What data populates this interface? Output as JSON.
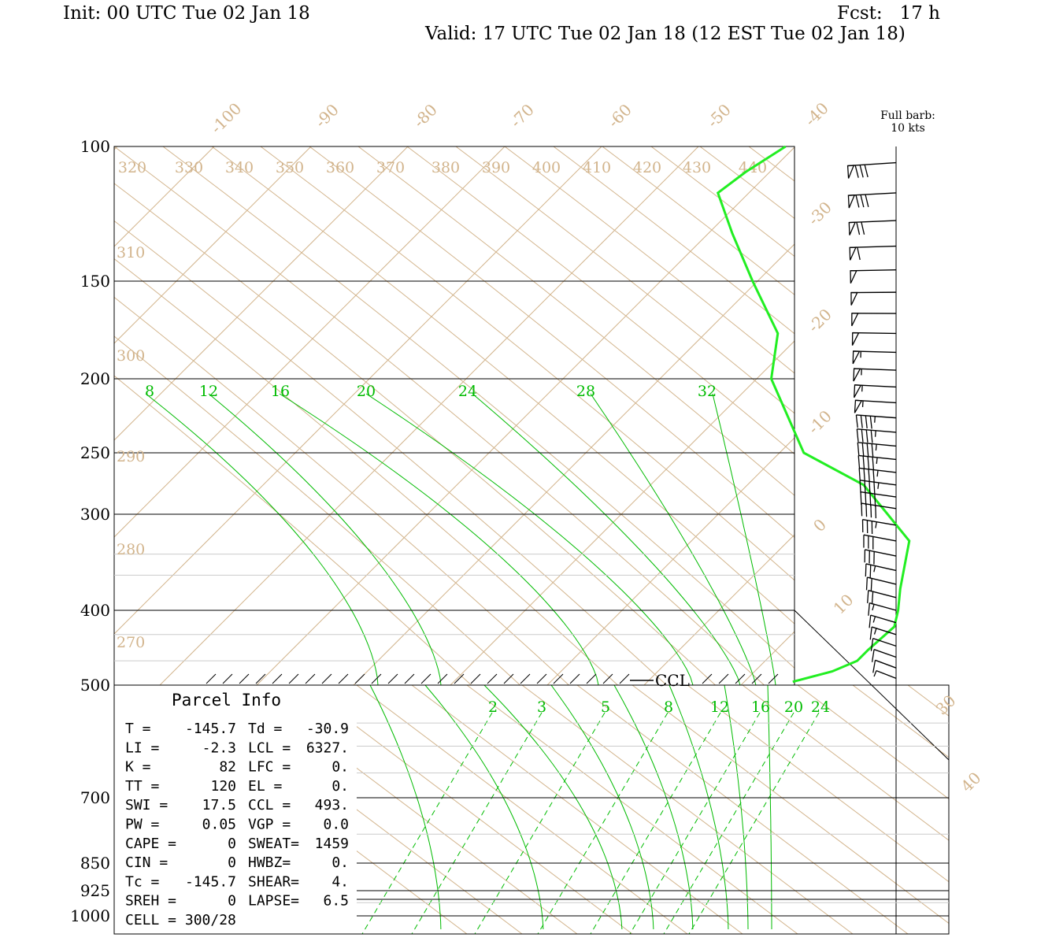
{
  "header": {
    "init": "Init: 00 UTC Tue 02 Jan 18",
    "fcst": "Fcst:   17 h",
    "valid": "Valid: 17 UTC Tue 02 Jan 18 (12 EST Tue 02 Jan 18)"
  },
  "barb_legend": {
    "line1": "Full barb:",
    "line2": "10 kts"
  },
  "colors": {
    "theta": "#d2b48c",
    "mixing": "#00bb00",
    "sounding": "#22ee22",
    "grid": "#000000",
    "ink": "#000000"
  },
  "chart_data": {
    "type": "skew-t",
    "pressure_levels": [
      {
        "p": 100,
        "label": "100"
      },
      {
        "p": 150,
        "label": "150"
      },
      {
        "p": 200,
        "label": "200"
      },
      {
        "p": 250,
        "label": "250"
      },
      {
        "p": 300,
        "label": "300"
      },
      {
        "p": 400,
        "label": "400"
      },
      {
        "p": 500,
        "label": "500"
      },
      {
        "p": 700,
        "label": "700"
      },
      {
        "p": 850,
        "label": "850"
      },
      {
        "p": 925,
        "label": "925"
      },
      {
        "p": 1000,
        "label": "1000"
      }
    ],
    "temperature_labels": [
      {
        "t": -100,
        "label": "-100"
      },
      {
        "t": -90,
        "label": "-90"
      },
      {
        "t": -80,
        "label": "-80"
      },
      {
        "t": -70,
        "label": "-70"
      },
      {
        "t": -60,
        "label": "-60"
      },
      {
        "t": -50,
        "label": "-50"
      },
      {
        "t": -40,
        "label": "-40"
      },
      {
        "t": -30,
        "label": "-30"
      },
      {
        "t": -20,
        "label": "-20"
      },
      {
        "t": -10,
        "label": "-10"
      },
      {
        "t": 0,
        "label": "0"
      },
      {
        "t": 10,
        "label": "10"
      },
      {
        "t": 30,
        "label": "30"
      },
      {
        "t": 40,
        "label": "40"
      }
    ],
    "theta_top_labels": [
      "320",
      "330",
      "340",
      "350",
      "360",
      "370",
      "380",
      "390",
      "400",
      "410",
      "420",
      "430",
      "440"
    ],
    "theta_left_labels": [
      "310",
      "300",
      "290",
      "280",
      "270"
    ],
    "mixing_ratio_upper_labels": [
      "8",
      "12",
      "16",
      "20",
      "24",
      "28",
      "32"
    ],
    "mixing_ratio_lower_labels": [
      "2",
      "3",
      "5",
      "8",
      "12",
      "16",
      "20",
      "24"
    ],
    "ccl_label": "CCL",
    "temperature_profile": [
      {
        "p": 100,
        "t": -41.0
      },
      {
        "p": 108,
        "t": -42.5
      },
      {
        "p": 115,
        "t": -43.2
      },
      {
        "p": 130,
        "t": -37.5
      },
      {
        "p": 150,
        "t": -30.5
      },
      {
        "p": 175,
        "t": -22.5
      },
      {
        "p": 200,
        "t": -18.5
      },
      {
        "p": 250,
        "t": -7.5
      },
      {
        "p": 275,
        "t": 2.0
      },
      {
        "p": 300,
        "t": 7.5
      },
      {
        "p": 325,
        "t": 12.5
      },
      {
        "p": 375,
        "t": 16.5
      },
      {
        "p": 400,
        "t": 18.5
      },
      {
        "p": 420,
        "t": 19.8
      },
      {
        "p": 450,
        "t": 19.5
      },
      {
        "p": 465,
        "t": 19.5
      },
      {
        "p": 480,
        "t": 18.0
      },
      {
        "p": 495,
        "t": 15.0
      }
    ],
    "parcel_info": {
      "title": "Parcel Info",
      "rows": [
        [
          "T  =",
          "-145.7",
          "Td =",
          "-30.9"
        ],
        [
          "LI =",
          "-2.3",
          "LCL =",
          "6327."
        ],
        [
          "K  =",
          "82",
          "LFC =",
          "0."
        ],
        [
          "TT =",
          "120",
          "EL  =",
          "0."
        ],
        [
          "SWI =",
          "17.5",
          "CCL =",
          "493."
        ],
        [
          "PW =",
          "0.05",
          "VGP =",
          "0.0"
        ],
        [
          "CAPE =",
          "0",
          "SWEAT=",
          "1459"
        ],
        [
          "CIN =",
          "0",
          "HWBZ=",
          "0."
        ],
        [
          "Tc =",
          "-145.7",
          "SHEAR=",
          "4."
        ],
        [
          "SREH =",
          "0",
          "LAPSE=",
          "6.5"
        ],
        [
          "CELL = 300/28",
          "",
          "",
          ""
        ]
      ]
    },
    "wind_barbs": [
      {
        "p": 105,
        "knots": 80
      },
      {
        "p": 115,
        "knots": 80
      },
      {
        "p": 125,
        "knots": 70
      },
      {
        "p": 135,
        "knots": 60
      },
      {
        "p": 145,
        "knots": 50
      },
      {
        "p": 155,
        "knots": 50
      },
      {
        "p": 165,
        "knots": 50
      },
      {
        "p": 175,
        "knots": 50
      },
      {
        "p": 185,
        "knots": 55
      },
      {
        "p": 195,
        "knots": 55
      },
      {
        "p": 205,
        "knots": 55
      },
      {
        "p": 215,
        "knots": 55
      },
      {
        "p": 225,
        "knots": 45
      },
      {
        "p": 235,
        "knots": 45
      },
      {
        "p": 245,
        "knots": 45
      },
      {
        "p": 255,
        "knots": 45
      },
      {
        "p": 265,
        "knots": 45
      },
      {
        "p": 275,
        "knots": 45
      },
      {
        "p": 285,
        "knots": 40
      },
      {
        "p": 295,
        "knots": 40
      },
      {
        "p": 310,
        "knots": 35
      },
      {
        "p": 325,
        "knots": 30
      },
      {
        "p": 340,
        "knots": 30
      },
      {
        "p": 355,
        "knots": 25
      },
      {
        "p": 370,
        "knots": 20
      },
      {
        "p": 385,
        "knots": 20
      },
      {
        "p": 400,
        "knots": 15
      },
      {
        "p": 415,
        "knots": 15
      },
      {
        "p": 430,
        "knots": 15
      },
      {
        "p": 445,
        "knots": 10
      },
      {
        "p": 460,
        "knots": 10
      },
      {
        "p": 475,
        "knots": 10
      },
      {
        "p": 490,
        "knots": 5
      }
    ]
  }
}
